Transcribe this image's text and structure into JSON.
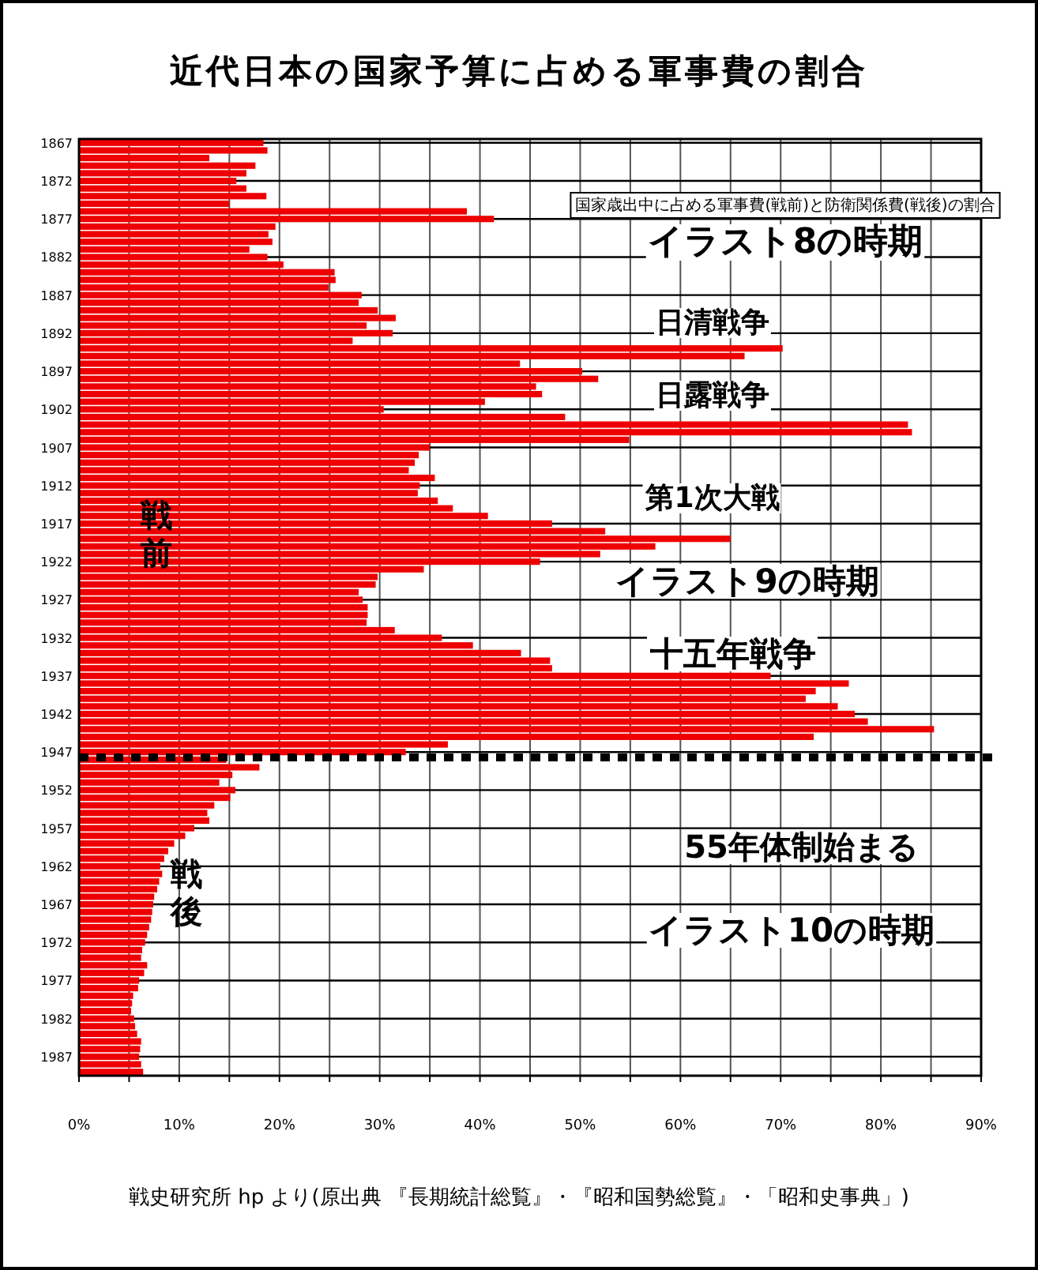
{
  "chart_data": {
    "type": "bar",
    "orientation": "horizontal",
    "title": "近代日本の国家予算に占める軍事費の割合",
    "categories": [
      "1867",
      null,
      null,
      null,
      null,
      "1872",
      null,
      null,
      null,
      null,
      "1877",
      null,
      null,
      null,
      null,
      "1882",
      null,
      null,
      null,
      null,
      "1887",
      null,
      null,
      null,
      null,
      "1892",
      null,
      null,
      null,
      null,
      "1897",
      null,
      null,
      null,
      null,
      "1902",
      null,
      null,
      null,
      null,
      "1907",
      null,
      null,
      null,
      null,
      "1912",
      null,
      null,
      null,
      null,
      "1917",
      null,
      null,
      null,
      null,
      "1922",
      null,
      null,
      null,
      null,
      "1927",
      null,
      null,
      null,
      null,
      "1932",
      null,
      null,
      null,
      null,
      "1937",
      null,
      null,
      null,
      null,
      "1942",
      null,
      null,
      null,
      null,
      "1947",
      null,
      null,
      null,
      null,
      "1952",
      null,
      null,
      null,
      null,
      "1957",
      null,
      null,
      null,
      null,
      "1962",
      null,
      null,
      null,
      null,
      "1967",
      null,
      null,
      null,
      null,
      "1972",
      null,
      null,
      null,
      null,
      "1977",
      null,
      null,
      null,
      null,
      "1982",
      null,
      null,
      null,
      null,
      "1987",
      null,
      null
    ],
    "values": [
      18.4,
      18.8,
      13.0,
      17.6,
      16.7,
      15.7,
      16.7,
      18.7,
      15.0,
      38.7,
      41.4,
      19.6,
      18.9,
      19.3,
      17.0,
      18.8,
      20.4,
      25.5,
      25.6,
      24.9,
      28.2,
      27.9,
      29.8,
      31.6,
      28.7,
      31.3,
      27.3,
      70.2,
      66.4,
      44.0,
      50.2,
      51.8,
      45.6,
      46.2,
      40.5,
      30.4,
      48.5,
      82.7,
      83.1,
      54.9,
      35.0,
      33.9,
      33.5,
      32.9,
      35.5,
      34.0,
      33.8,
      35.8,
      37.3,
      40.8,
      47.2,
      52.5,
      65.0,
      57.5,
      52.0,
      46.0,
      34.4,
      29.8,
      29.6,
      27.9,
      28.3,
      28.8,
      28.8,
      28.7,
      31.5,
      36.2,
      39.3,
      44.1,
      47.0,
      47.2,
      69.0,
      76.8,
      73.5,
      72.5,
      75.7,
      77.4,
      78.7,
      85.3,
      73.3,
      36.8,
      32.6,
      14.7,
      18.0,
      15.3,
      14.0,
      15.6,
      15.1,
      13.5,
      12.8,
      13.0,
      11.5,
      10.6,
      9.5,
      8.9,
      8.5,
      8.1,
      8.3,
      8.0,
      7.8,
      7.5,
      7.4,
      7.3,
      7.2,
      7.0,
      6.8,
      6.6,
      6.3,
      6.2,
      6.8,
      6.5,
      6.0,
      5.9,
      5.4,
      5.3,
      5.2,
      5.5,
      5.6,
      5.8,
      6.2,
      6.1,
      6.0,
      6.2,
      6.4
    ],
    "color": "#ee0000",
    "xlim": [
      0,
      90
    ],
    "xticks": [
      {
        "value": 0,
        "label": "0%"
      },
      {
        "value": 5,
        "label": null
      },
      {
        "value": 10,
        "label": "10%"
      },
      {
        "value": 15,
        "label": null
      },
      {
        "value": 20,
        "label": "20%"
      },
      {
        "value": 25,
        "label": null
      },
      {
        "value": 30,
        "label": "30%"
      },
      {
        "value": 35,
        "label": null
      },
      {
        "value": 40,
        "label": "40%"
      },
      {
        "value": 45,
        "label": null
      },
      {
        "value": 50,
        "label": "50%"
      },
      {
        "value": 55,
        "label": null
      },
      {
        "value": 60,
        "label": "60%"
      },
      {
        "value": 65,
        "label": null
      },
      {
        "value": 70,
        "label": "70%"
      },
      {
        "value": 75,
        "label": null
      },
      {
        "value": 80,
        "label": "80%"
      },
      {
        "value": 85,
        "label": null
      },
      {
        "value": 90,
        "label": "90%"
      }
    ],
    "grid": true,
    "ref_lines": [
      {
        "axis": "y",
        "value": "1947",
        "line_style": "dotted",
        "color": "#000000"
      }
    ],
    "annotations": [
      "国家歳出中に占める軍事費(戦前)と防衛関係費(戦後)の割合",
      "イラスト8の時期",
      "日清戦争",
      "日露戦争",
      "第1次大戦",
      "イラスト9の時期",
      "十五年戦争",
      "55年体制始まる",
      "イラスト10の時期",
      "戦前",
      "戦後",
      "戦史研究所 hp より(原出典 『長期統計総覧』・『昭和国勢総覧』・「昭和史事典」)"
    ]
  }
}
